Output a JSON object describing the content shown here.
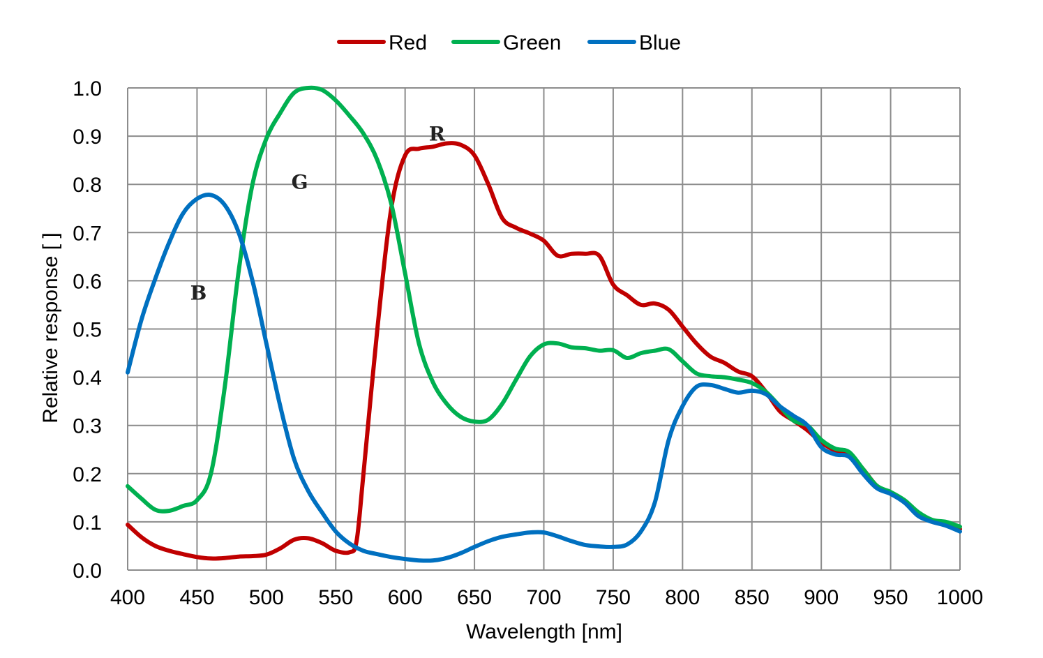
{
  "chart_data": {
    "type": "line",
    "title": "",
    "xlabel": "Wavelength [nm]",
    "ylabel": "Relative response [ ]",
    "xlim": [
      400,
      1000
    ],
    "ylim": [
      0.0,
      1.0
    ],
    "x_ticks": [
      "400",
      "450",
      "500",
      "550",
      "600",
      "650",
      "700",
      "750",
      "800",
      "850",
      "900",
      "950",
      "1000"
    ],
    "y_ticks": [
      "0.0",
      "0.1",
      "0.2",
      "0.3",
      "0.4",
      "0.5",
      "0.6",
      "0.7",
      "0.8",
      "0.9",
      "1.0"
    ],
    "grid": true,
    "legend_position": "top-center",
    "series": [
      {
        "name": "Red",
        "color": "#c00000",
        "points": [
          [
            400,
            0.094
          ],
          [
            410,
            0.068
          ],
          [
            420,
            0.05
          ],
          [
            430,
            0.04
          ],
          [
            440,
            0.033
          ],
          [
            450,
            0.027
          ],
          [
            460,
            0.024
          ],
          [
            470,
            0.025
          ],
          [
            480,
            0.028
          ],
          [
            490,
            0.029
          ],
          [
            500,
            0.032
          ],
          [
            510,
            0.045
          ],
          [
            520,
            0.063
          ],
          [
            530,
            0.066
          ],
          [
            540,
            0.056
          ],
          [
            550,
            0.04
          ],
          [
            560,
            0.037
          ],
          [
            565,
            0.06
          ],
          [
            570,
            0.2
          ],
          [
            580,
            0.5
          ],
          [
            590,
            0.75
          ],
          [
            600,
            0.86
          ],
          [
            610,
            0.874
          ],
          [
            620,
            0.878
          ],
          [
            630,
            0.885
          ],
          [
            640,
            0.882
          ],
          [
            650,
            0.86
          ],
          [
            660,
            0.8
          ],
          [
            670,
            0.73
          ],
          [
            680,
            0.71
          ],
          [
            690,
            0.698
          ],
          [
            700,
            0.683
          ],
          [
            710,
            0.652
          ],
          [
            720,
            0.656
          ],
          [
            730,
            0.656
          ],
          [
            740,
            0.652
          ],
          [
            750,
            0.592
          ],
          [
            760,
            0.57
          ],
          [
            770,
            0.55
          ],
          [
            780,
            0.553
          ],
          [
            790,
            0.54
          ],
          [
            800,
            0.505
          ],
          [
            810,
            0.47
          ],
          [
            820,
            0.443
          ],
          [
            830,
            0.43
          ],
          [
            840,
            0.412
          ],
          [
            850,
            0.402
          ],
          [
            860,
            0.37
          ],
          [
            870,
            0.33
          ],
          [
            880,
            0.31
          ],
          [
            890,
            0.29
          ],
          [
            900,
            0.265
          ],
          [
            910,
            0.248
          ],
          [
            920,
            0.24
          ],
          [
            930,
            0.21
          ],
          [
            940,
            0.175
          ],
          [
            950,
            0.16
          ],
          [
            960,
            0.142
          ],
          [
            970,
            0.115
          ],
          [
            980,
            0.1
          ],
          [
            990,
            0.095
          ],
          [
            1000,
            0.085
          ]
        ]
      },
      {
        "name": "Green",
        "color": "#00b050",
        "points": [
          [
            400,
            0.174
          ],
          [
            410,
            0.148
          ],
          [
            420,
            0.125
          ],
          [
            430,
            0.123
          ],
          [
            440,
            0.133
          ],
          [
            450,
            0.145
          ],
          [
            460,
            0.2
          ],
          [
            470,
            0.38
          ],
          [
            480,
            0.62
          ],
          [
            490,
            0.8
          ],
          [
            500,
            0.895
          ],
          [
            510,
            0.948
          ],
          [
            520,
            0.99
          ],
          [
            530,
            1.0
          ],
          [
            540,
            0.996
          ],
          [
            550,
            0.974
          ],
          [
            560,
            0.942
          ],
          [
            570,
            0.905
          ],
          [
            580,
            0.85
          ],
          [
            590,
            0.76
          ],
          [
            600,
            0.615
          ],
          [
            610,
            0.47
          ],
          [
            620,
            0.39
          ],
          [
            630,
            0.345
          ],
          [
            640,
            0.318
          ],
          [
            650,
            0.308
          ],
          [
            660,
            0.312
          ],
          [
            670,
            0.345
          ],
          [
            680,
            0.395
          ],
          [
            690,
            0.443
          ],
          [
            700,
            0.468
          ],
          [
            710,
            0.47
          ],
          [
            720,
            0.462
          ],
          [
            730,
            0.46
          ],
          [
            740,
            0.455
          ],
          [
            750,
            0.456
          ],
          [
            760,
            0.44
          ],
          [
            770,
            0.45
          ],
          [
            780,
            0.455
          ],
          [
            790,
            0.458
          ],
          [
            800,
            0.433
          ],
          [
            810,
            0.408
          ],
          [
            820,
            0.402
          ],
          [
            830,
            0.4
          ],
          [
            840,
            0.395
          ],
          [
            850,
            0.388
          ],
          [
            860,
            0.37
          ],
          [
            870,
            0.34
          ],
          [
            880,
            0.31
          ],
          [
            890,
            0.3
          ],
          [
            900,
            0.27
          ],
          [
            910,
            0.252
          ],
          [
            920,
            0.245
          ],
          [
            930,
            0.21
          ],
          [
            940,
            0.175
          ],
          [
            950,
            0.162
          ],
          [
            960,
            0.145
          ],
          [
            970,
            0.12
          ],
          [
            980,
            0.104
          ],
          [
            990,
            0.1
          ],
          [
            1000,
            0.09
          ]
        ]
      },
      {
        "name": "Blue",
        "color": "#0070c0",
        "points": [
          [
            400,
            0.41
          ],
          [
            410,
            0.52
          ],
          [
            420,
            0.605
          ],
          [
            430,
            0.68
          ],
          [
            440,
            0.74
          ],
          [
            450,
            0.77
          ],
          [
            460,
            0.778
          ],
          [
            470,
            0.757
          ],
          [
            480,
            0.7
          ],
          [
            490,
            0.6
          ],
          [
            500,
            0.47
          ],
          [
            510,
            0.34
          ],
          [
            520,
            0.23
          ],
          [
            530,
            0.165
          ],
          [
            540,
            0.12
          ],
          [
            550,
            0.08
          ],
          [
            560,
            0.055
          ],
          [
            570,
            0.04
          ],
          [
            580,
            0.033
          ],
          [
            590,
            0.027
          ],
          [
            600,
            0.023
          ],
          [
            610,
            0.02
          ],
          [
            620,
            0.02
          ],
          [
            630,
            0.025
          ],
          [
            640,
            0.035
          ],
          [
            650,
            0.048
          ],
          [
            660,
            0.06
          ],
          [
            670,
            0.069
          ],
          [
            680,
            0.074
          ],
          [
            690,
            0.078
          ],
          [
            700,
            0.078
          ],
          [
            710,
            0.07
          ],
          [
            720,
            0.06
          ],
          [
            730,
            0.052
          ],
          [
            740,
            0.049
          ],
          [
            750,
            0.048
          ],
          [
            760,
            0.053
          ],
          [
            770,
            0.08
          ],
          [
            780,
            0.14
          ],
          [
            790,
            0.27
          ],
          [
            800,
            0.34
          ],
          [
            810,
            0.38
          ],
          [
            820,
            0.384
          ],
          [
            830,
            0.376
          ],
          [
            840,
            0.368
          ],
          [
            850,
            0.372
          ],
          [
            860,
            0.365
          ],
          [
            870,
            0.34
          ],
          [
            880,
            0.32
          ],
          [
            890,
            0.3
          ],
          [
            900,
            0.255
          ],
          [
            910,
            0.24
          ],
          [
            920,
            0.235
          ],
          [
            930,
            0.2
          ],
          [
            940,
            0.17
          ],
          [
            950,
            0.158
          ],
          [
            960,
            0.14
          ],
          [
            970,
            0.112
          ],
          [
            980,
            0.1
          ],
          [
            990,
            0.092
          ],
          [
            1000,
            0.08
          ]
        ]
      }
    ],
    "annotations": [
      {
        "text": "B",
        "x": 451,
        "y": 0.575
      },
      {
        "text": "G",
        "x": 524,
        "y": 0.805
      },
      {
        "text": "R",
        "x": 623,
        "y": 0.905
      }
    ]
  }
}
